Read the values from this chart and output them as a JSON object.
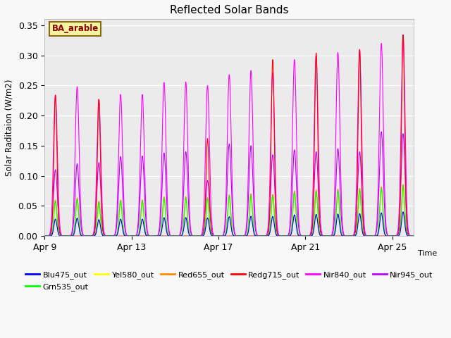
{
  "title": "Reflected Solar Bands",
  "ylabel": "Solar Raditaion (W/m2)",
  "xlabel": "Time",
  "ylim": [
    0,
    0.36
  ],
  "yticks": [
    0.0,
    0.05,
    0.1,
    0.15,
    0.2,
    0.25,
    0.3,
    0.35
  ],
  "fig_facecolor": "#f8f8f8",
  "ax_facecolor": "#ebebeb",
  "annotation_text": "BA_arable",
  "annotation_color": "#8B0000",
  "annotation_bg": "#f5f5a0",
  "annotation_border": "#8B6914",
  "xtick_labels": [
    "Apr 9",
    "Apr 13",
    "Apr 17",
    "Apr 21",
    "Apr 25"
  ],
  "xtick_positions": [
    0,
    4,
    8,
    12,
    16
  ],
  "num_days": 17,
  "samples_per_day": 288,
  "nir840_peaks": [
    0.234,
    0.248,
    0.227,
    0.235,
    0.235,
    0.255,
    0.256,
    0.25,
    0.268,
    0.275,
    0.271,
    0.293,
    0.3,
    0.305,
    0.31,
    0.32,
    0.334
  ],
  "nir945_peaks": [
    0.11,
    0.12,
    0.122,
    0.132,
    0.133,
    0.138,
    0.14,
    0.092,
    0.153,
    0.15,
    0.135,
    0.143,
    0.14,
    0.145,
    0.14,
    0.173,
    0.17
  ],
  "redg715_peaks": [
    0.234,
    0.0,
    0.227,
    0.0,
    0.0,
    0.0,
    0.0,
    0.162,
    0.0,
    0.0,
    0.293,
    0.0,
    0.304,
    0.0,
    0.309,
    0.0,
    0.334
  ],
  "blu_scale": 0.12,
  "grn_scale": 0.245,
  "yel_scale": 0.235,
  "red_scale": 0.255,
  "series_colors": {
    "Blu475_out": "#0000ff",
    "Grn535_out": "#00ff00",
    "Yel580_out": "#ffff00",
    "Red655_out": "#ff8800",
    "Redg715_out": "#ff0000",
    "Nir840_out": "#ff00ff",
    "Nir945_out": "#bb00ff"
  }
}
